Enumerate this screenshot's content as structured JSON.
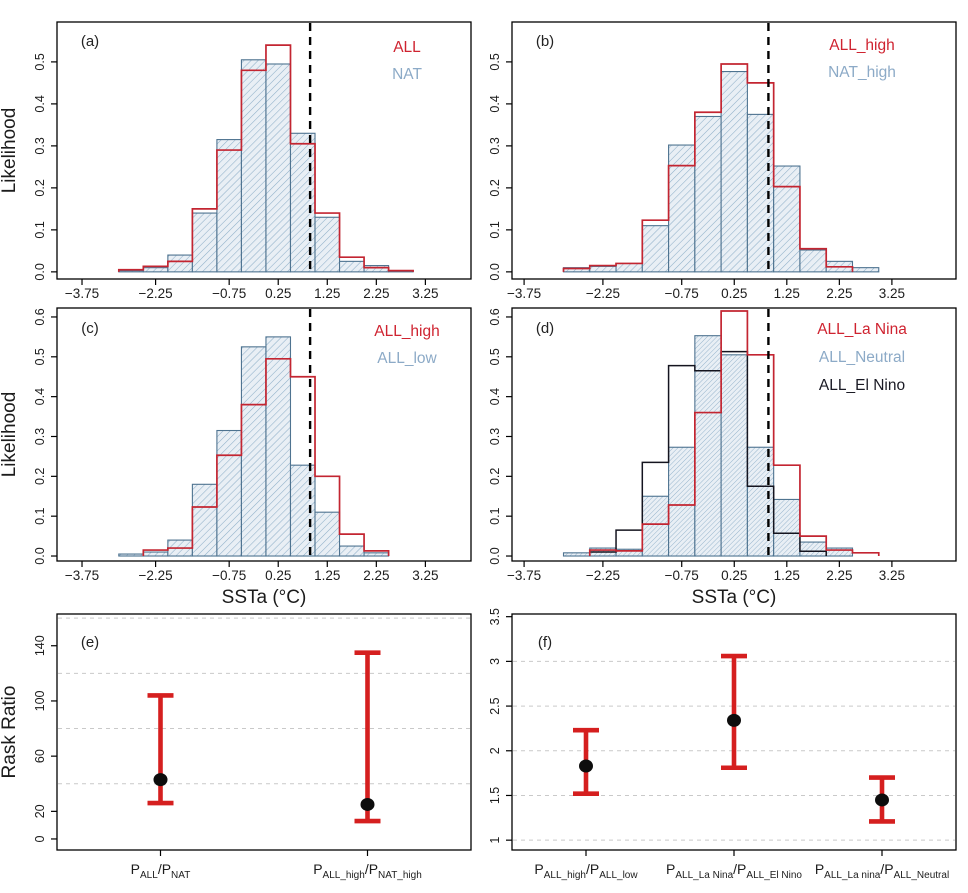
{
  "figure": {
    "kind": "six-panel attribution figure",
    "colors": {
      "red_series": "#c32531",
      "blue_series_stroke": "#4e7390",
      "blue_hatch_line": "#8fb0c9",
      "blue_hatch_bg": "#e9eff5",
      "black_series": "#14141f",
      "legend_red_text": "#cf2330",
      "legend_blue_text": "#8caac7",
      "legend_black_text": "#1a1a24",
      "errorbar_red": "#d51f1f",
      "dot_black": "#0d0d0d",
      "gridline_gray": "#c9c9c9",
      "axis_black": "#000000",
      "text_dark": "#1c1c1c"
    },
    "threshold_x": 0.9
  },
  "chart_data": [
    {
      "id": "a",
      "type": "histogram",
      "letter": "(a)",
      "ylabel": "Likelihood",
      "xlabel": null,
      "xlim_ticks": [
        -3.75,
        3.25
      ],
      "bin_start": -3.0,
      "bin_width": 0.5,
      "x_ticks": [
        {
          "v": -3.75,
          "l": "−3.75"
        },
        {
          "v": -2.25,
          "l": "−2.25"
        },
        {
          "v": -0.75,
          "l": "−0.75"
        },
        {
          "v": 0.25,
          "l": "0.25"
        },
        {
          "v": 1.25,
          "l": "1.25"
        },
        {
          "v": 2.25,
          "l": "2.25"
        },
        {
          "v": 3.25,
          "l": "3.25"
        }
      ],
      "y_ticks": [
        {
          "v": 0,
          "l": "0.0"
        },
        {
          "v": 0.1,
          "l": "0.1"
        },
        {
          "v": 0.2,
          "l": "0.2"
        },
        {
          "v": 0.3,
          "l": "0.3"
        },
        {
          "v": 0.4,
          "l": "0.4"
        },
        {
          "v": 0.5,
          "l": "0.5"
        }
      ],
      "dashed_line_x": 0.9,
      "legend": [
        {
          "label": "ALL",
          "color": "#cf2330"
        },
        {
          "label": "NAT",
          "color": "#8caac7"
        }
      ],
      "series": [
        {
          "name": "NAT",
          "style": "hatch",
          "values": [
            0.003,
            0.01,
            0.04,
            0.14,
            0.315,
            0.505,
            0.495,
            0.33,
            0.13,
            0.025,
            0.015,
            0.003
          ]
        },
        {
          "name": "ALL",
          "style": "outline",
          "color": "red",
          "values": [
            0.005,
            0.013,
            0.025,
            0.15,
            0.29,
            0.48,
            0.54,
            0.305,
            0.14,
            0.035,
            0.01,
            0.003
          ]
        }
      ]
    },
    {
      "id": "b",
      "type": "histogram",
      "letter": "(b)",
      "ylabel": null,
      "xlabel": null,
      "xlim_ticks": [
        -3.75,
        3.25
      ],
      "bin_start": -3.0,
      "bin_width": 0.5,
      "x_ticks": [
        {
          "v": -3.75,
          "l": "−3.75"
        },
        {
          "v": -2.25,
          "l": "−2.25"
        },
        {
          "v": -0.75,
          "l": "−0.75"
        },
        {
          "v": 0.25,
          "l": "0.25"
        },
        {
          "v": 1.25,
          "l": "1.25"
        },
        {
          "v": 2.25,
          "l": "2.25"
        },
        {
          "v": 3.25,
          "l": "3.25"
        }
      ],
      "y_ticks": [
        {
          "v": 0,
          "l": "0.0"
        },
        {
          "v": 0.1,
          "l": "0.1"
        },
        {
          "v": 0.2,
          "l": "0.2"
        },
        {
          "v": 0.3,
          "l": "0.3"
        },
        {
          "v": 0.4,
          "l": "0.4"
        },
        {
          "v": 0.5,
          "l": "0.5"
        }
      ],
      "dashed_line_x": 0.9,
      "legend": [
        {
          "label": "ALL_high",
          "color": "#cf2330"
        },
        {
          "label": "NAT_high",
          "color": "#8caac7"
        }
      ],
      "series": [
        {
          "name": "NAT_high",
          "style": "hatch",
          "values": [
            0.01,
            0.013,
            0.02,
            0.11,
            0.302,
            0.37,
            0.477,
            0.375,
            0.252,
            0.052,
            0.025,
            0.01
          ]
        },
        {
          "name": "ALL_high",
          "style": "outline",
          "color": "red",
          "values": [
            0.008,
            0.015,
            0.02,
            0.123,
            0.253,
            0.38,
            0.495,
            0.45,
            0.203,
            0.055,
            0.012,
            0.0
          ]
        }
      ]
    },
    {
      "id": "c",
      "type": "histogram",
      "letter": "(c)",
      "ylabel": "Likelihood",
      "xlabel": "SSTa (°C)",
      "xlim_ticks": [
        -3.75,
        3.25
      ],
      "bin_start": -3.0,
      "bin_width": 0.5,
      "x_ticks": [
        {
          "v": -3.75,
          "l": "−3.75"
        },
        {
          "v": -2.25,
          "l": "−2.25"
        },
        {
          "v": -0.75,
          "l": "−0.75"
        },
        {
          "v": 0.25,
          "l": "0.25"
        },
        {
          "v": 1.25,
          "l": "1.25"
        },
        {
          "v": 2.25,
          "l": "2.25"
        },
        {
          "v": 3.25,
          "l": "3.25"
        }
      ],
      "y_ticks": [
        {
          "v": 0,
          "l": "0.0"
        },
        {
          "v": 0.1,
          "l": "0.1"
        },
        {
          "v": 0.2,
          "l": "0.2"
        },
        {
          "v": 0.3,
          "l": "0.3"
        },
        {
          "v": 0.4,
          "l": "0.4"
        },
        {
          "v": 0.5,
          "l": "0.5"
        },
        {
          "v": 0.6,
          "l": "0.6"
        }
      ],
      "dashed_line_x": 0.9,
      "legend": [
        {
          "label": "ALL_high",
          "color": "#cf2330"
        },
        {
          "label": "ALL_low",
          "color": "#8caac7"
        }
      ],
      "series": [
        {
          "name": "ALL_low",
          "style": "hatch",
          "values": [
            0.005,
            0.01,
            0.04,
            0.18,
            0.315,
            0.525,
            0.55,
            0.228,
            0.11,
            0.025,
            0.008,
            0.0
          ]
        },
        {
          "name": "ALL_high",
          "style": "outline",
          "color": "red",
          "values": [
            0.0,
            0.015,
            0.02,
            0.123,
            0.253,
            0.38,
            0.495,
            0.45,
            0.2,
            0.055,
            0.013,
            0.0
          ]
        }
      ]
    },
    {
      "id": "d",
      "type": "histogram",
      "letter": "(d)",
      "ylabel": null,
      "xlabel": "SSTa (°C)",
      "xlim_ticks": [
        -3.75,
        3.25
      ],
      "bin_start": -3.0,
      "bin_width": 0.5,
      "x_ticks": [
        {
          "v": -3.75,
          "l": "−3.75"
        },
        {
          "v": -2.25,
          "l": "−2.25"
        },
        {
          "v": -0.75,
          "l": "−0.75"
        },
        {
          "v": 0.25,
          "l": "0.25"
        },
        {
          "v": 1.25,
          "l": "1.25"
        },
        {
          "v": 2.25,
          "l": "2.25"
        },
        {
          "v": 3.25,
          "l": "3.25"
        }
      ],
      "y_ticks": [
        {
          "v": 0,
          "l": "0.0"
        },
        {
          "v": 0.1,
          "l": "0.1"
        },
        {
          "v": 0.2,
          "l": "0.2"
        },
        {
          "v": 0.3,
          "l": "0.3"
        },
        {
          "v": 0.4,
          "l": "0.4"
        },
        {
          "v": 0.5,
          "l": "0.5"
        },
        {
          "v": 0.6,
          "l": "0.6"
        }
      ],
      "dashed_line_x": 0.9,
      "legend": [
        {
          "label": "ALL_La Nina",
          "color": "#cf2330"
        },
        {
          "label": "ALL_Neutral",
          "color": "#8caac7"
        },
        {
          "label": "ALL_El Nino",
          "color": "#1a1a24"
        }
      ],
      "series": [
        {
          "name": "ALL_Neutral",
          "style": "hatch",
          "fine": true,
          "values": [
            0.008,
            0.02,
            0.017,
            0.15,
            0.273,
            0.553,
            0.505,
            0.273,
            0.142,
            0.035,
            0.02,
            0.0
          ]
        },
        {
          "name": "ALL_El Nino",
          "style": "outline",
          "color": "black",
          "values": [
            0.0,
            0.01,
            0.065,
            0.235,
            0.478,
            0.465,
            0.513,
            0.175,
            0.057,
            0.012,
            0.0,
            0.0
          ]
        },
        {
          "name": "ALL_La Nina",
          "style": "outline",
          "color": "red",
          "values": [
            0.0,
            0.015,
            0.013,
            0.08,
            0.128,
            0.36,
            0.615,
            0.505,
            0.228,
            0.05,
            0.015,
            0.008
          ]
        }
      ]
    },
    {
      "id": "e",
      "type": "errorbar",
      "letter": "(e)",
      "ylabel": "Rask Ratio",
      "xlabel": null,
      "y_ticks": [
        {
          "v": 0,
          "l": "0"
        },
        {
          "v": 20,
          "l": "20"
        },
        {
          "v": 60,
          "l": "60"
        },
        {
          "v": 100,
          "l": "100"
        },
        {
          "v": 140,
          "l": "140"
        }
      ],
      "gridlines": [
        40,
        80,
        120,
        160
      ],
      "points": [
        {
          "x": 1,
          "lo": 26,
          "mid": 43,
          "hi": 104,
          "label": [
            [
              "P",
              false
            ],
            [
              "ALL",
              true
            ],
            [
              "/P",
              false
            ],
            [
              "NAT",
              true
            ]
          ]
        },
        {
          "x": 2,
          "lo": 13,
          "mid": 25,
          "hi": 135,
          "label": [
            [
              "P",
              false
            ],
            [
              "ALL_high",
              true
            ],
            [
              "/P",
              false
            ],
            [
              "NAT_high",
              true
            ]
          ]
        }
      ]
    },
    {
      "id": "f",
      "type": "errorbar",
      "letter": "(f)",
      "ylabel": null,
      "xlabel": null,
      "y_ticks": [
        {
          "v": 1,
          "l": "1"
        },
        {
          "v": 1.5,
          "l": "1.5"
        },
        {
          "v": 2,
          "l": "2"
        },
        {
          "v": 2.5,
          "l": "2.5"
        },
        {
          "v": 3,
          "l": "3"
        },
        {
          "v": 3.5,
          "l": "3.5"
        }
      ],
      "gridlines": [
        1,
        1.5,
        2,
        2.5,
        3
      ],
      "points": [
        {
          "x": 1,
          "lo": 1.52,
          "mid": 1.83,
          "hi": 2.23,
          "label": [
            [
              "P",
              false
            ],
            [
              "ALL_high",
              true
            ],
            [
              "/P",
              false
            ],
            [
              "ALL_low",
              true
            ]
          ]
        },
        {
          "x": 2,
          "lo": 1.81,
          "mid": 2.34,
          "hi": 3.06,
          "label": [
            [
              "P",
              false
            ],
            [
              "ALL_La Nina",
              true
            ],
            [
              "/P",
              false
            ],
            [
              "ALL_El Nino",
              true
            ]
          ]
        },
        {
          "x": 3,
          "lo": 1.21,
          "mid": 1.45,
          "hi": 1.7,
          "label": [
            [
              "P",
              false
            ],
            [
              "ALL_La nina",
              true
            ],
            [
              "/P",
              false
            ],
            [
              "ALL_Neutral",
              true
            ]
          ]
        }
      ]
    }
  ]
}
